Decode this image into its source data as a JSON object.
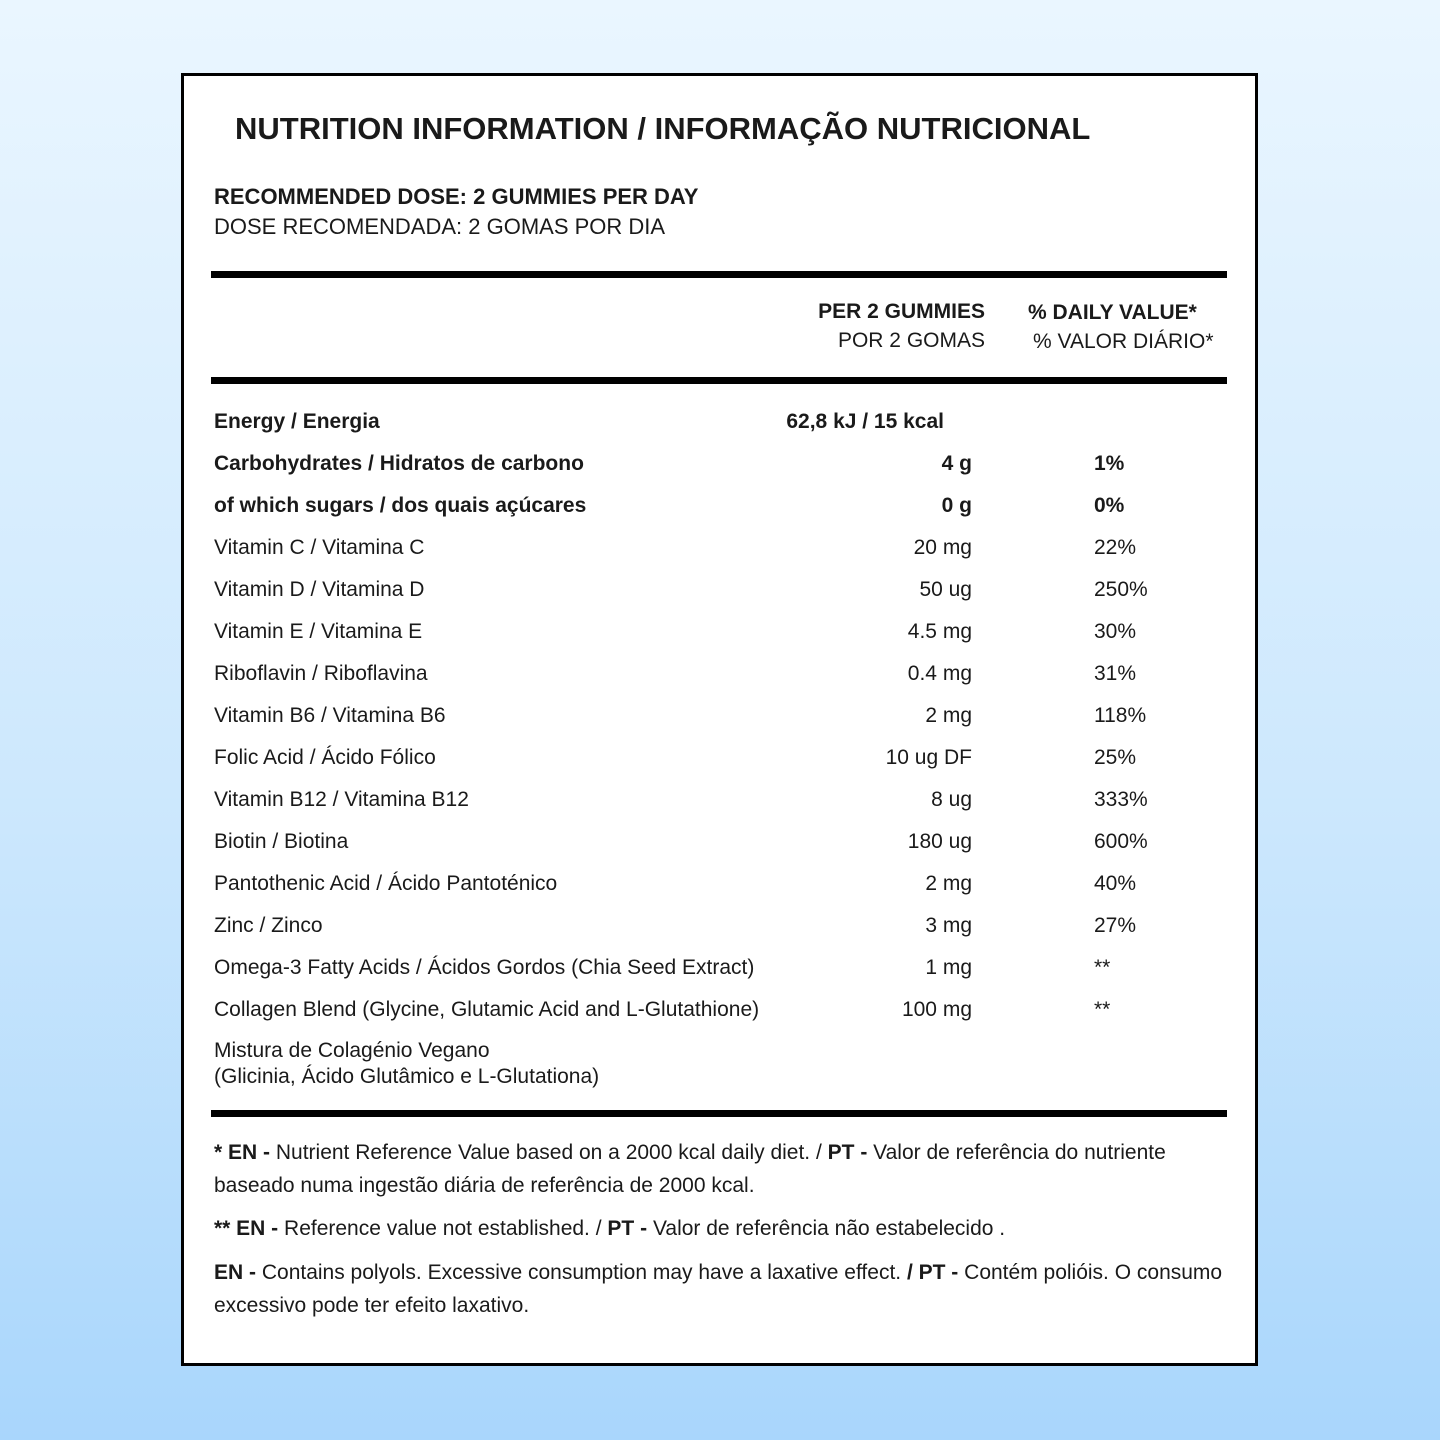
{
  "title": "NUTRITION INFORMATION / INFORMAÇÃO NUTRICIONAL",
  "dose": {
    "en": "RECOMMENDED DOSE: 2 GUMMIES PER DAY",
    "pt": "DOSE RECOMENDADA: 2 GOMAS POR DIA"
  },
  "columns": {
    "amount_en": "PER 2 GUMMIES",
    "amount_pt": "POR 2 GOMAS",
    "dv_en": "% DAILY VALUE*",
    "dv_pt": "% VALOR DIÁRIO*"
  },
  "rows": [
    {
      "name": "Energy / Energia",
      "amount": "62,8 kJ / 15 kcal",
      "bold": true
    },
    {
      "name": "Carbohydrates / Hidratos de carbono",
      "amount": "4 g",
      "dv": "1%",
      "bold": true
    },
    {
      "name": "of which sugars / dos quais açúcares",
      "amount": "0 g",
      "dv": "0%",
      "bold": true
    },
    {
      "name": "Vitamin C / Vitamina C",
      "amount": "20 mg",
      "dv": "22%"
    },
    {
      "name": "Vitamin D / Vitamina D",
      "amount": "50 ug",
      "dv": "250%"
    },
    {
      "name": "Vitamin E / Vitamina E",
      "amount": "4.5 mg",
      "dv": "30%"
    },
    {
      "name": "Riboflavin / Riboflavina",
      "amount": "0.4 mg",
      "dv": "31%"
    },
    {
      "name": "Vitamin B6 / Vitamina B6",
      "amount": "2 mg",
      "dv": "118%"
    },
    {
      "name": "Folic Acid / Ácido Fólico",
      "amount": "10 ug DF",
      "dv": "25%"
    },
    {
      "name": "Vitamin B12 / Vitamina B12",
      "amount": "8 ug",
      "dv": "333%"
    },
    {
      "name": "Biotin / Biotina",
      "amount": "180 ug",
      "dv": "600%"
    },
    {
      "name": "Pantothenic Acid / Ácido Pantoténico",
      "amount": "2 mg",
      "dv": "40%"
    },
    {
      "name": "Zinc / Zinco",
      "amount": "3 mg",
      "dv": "27%"
    },
    {
      "name": "Omega-3 Fatty Acids / Ácidos Gordos (Chia Seed Extract)",
      "amount": "1 mg",
      "dv": "**"
    },
    {
      "name": "Collagen Blend (Glycine, Glutamic Acid and L-Glutathione)",
      "amount": "100 mg",
      "dv": "**"
    }
  ],
  "collagen_pt": [
    "Mistura de Colagénio Vegano",
    "(Glicinia, Ácido Glutâmico e L-Glutationa)"
  ],
  "footnotes": [
    {
      "en_label": "* EN -",
      "en_text": "Nutrient Reference Value based on a 2000 kcal daily diet. /",
      "pt_label": "PT -",
      "pt_text": "Valor de referência do nutriente baseado numa ingestão diária de referência de 2000 kcal."
    },
    {
      "en_label": "** EN -",
      "en_text": "Reference value not established. /",
      "pt_label": "PT -",
      "pt_text": "Valor de referência não estabelecido ."
    },
    {
      "en_label": "EN -",
      "en_text": "Contains polyols. Excessive consumption may have a laxative effect.",
      "pt_label": "/ PT -",
      "pt_text": "Contém polióis. O consumo excessivo pode ter efeito laxativo."
    }
  ]
}
